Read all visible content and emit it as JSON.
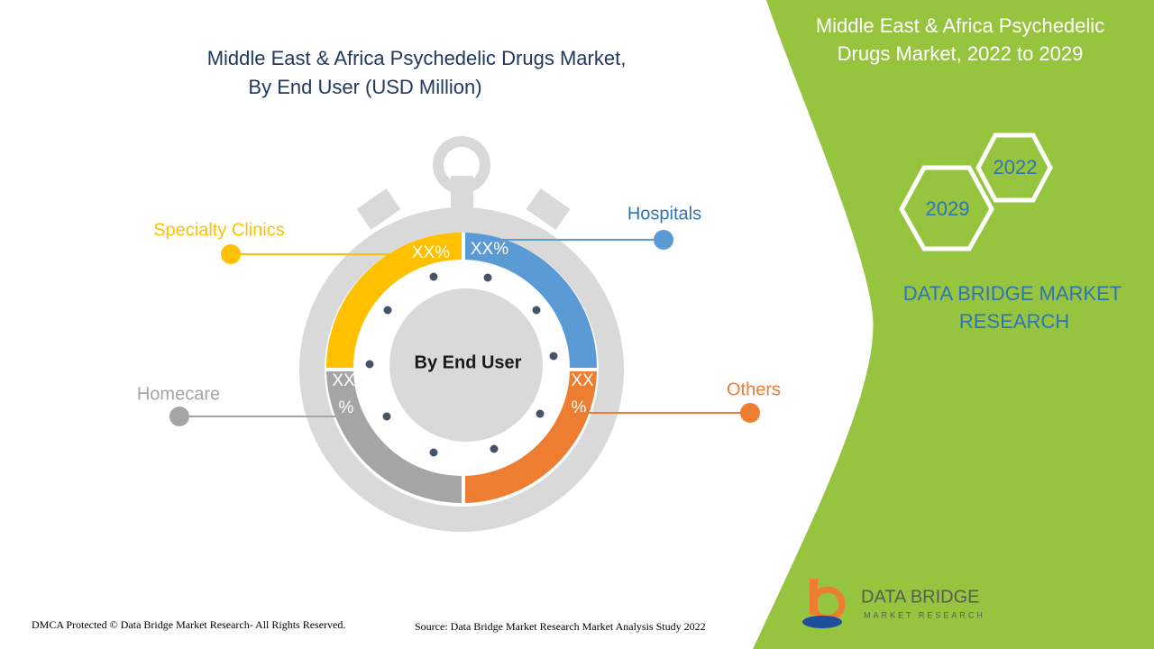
{
  "title": [
    "Middle East & Africa Psychedelic Drugs Market,",
    "By End User (USD Million)"
  ],
  "center_label": "By End User",
  "segments": [
    {
      "label": "Specialty Clinics",
      "value_label": [
        "XX%"
      ]
    },
    {
      "label": "Hospitals",
      "value_label": [
        "XX%"
      ]
    },
    {
      "label": "Homecare",
      "value_label": [
        "XX",
        "%"
      ]
    },
    {
      "label": "Others",
      "value_label": [
        "XX",
        "%"
      ]
    }
  ],
  "side_panel": {
    "title": [
      "Middle East & Africa Psychedelic",
      "Drugs Market, 2022 to 2029"
    ],
    "years": [
      "2022",
      "2029"
    ],
    "brand": [
      "DATA BRIDGE MARKET",
      "RESEARCH"
    ]
  },
  "logo": {
    "name": "DATA BRIDGE",
    "tagline": "MARKET RESEARCH"
  },
  "footer": {
    "copyright": "DMCA Protected © Data Bridge Market Research- All Rights Reserved.",
    "source": "Source: Data Bridge Market Research Market Analysis Study 2022"
  }
}
